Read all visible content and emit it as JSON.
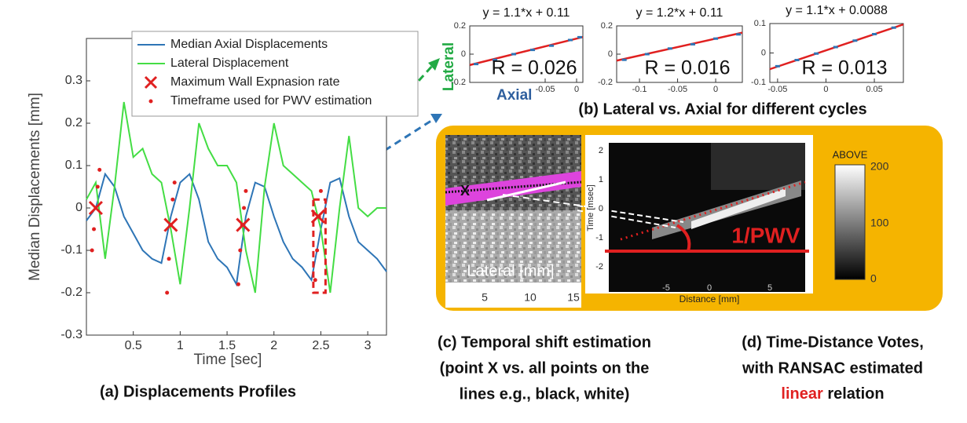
{
  "chart_data": [
    {
      "type": "line",
      "ylabel": "Median Displacements [mm]",
      "xlabel": "Time [sec]",
      "xlim": [
        0,
        3.2
      ],
      "ylim": [
        -0.3,
        0.4
      ],
      "xticks": [
        0.5,
        1,
        1.5,
        2,
        2.5,
        3
      ],
      "yticks": [
        -0.3,
        -0.2,
        -0.1,
        0,
        0.1,
        0.2,
        0.3
      ],
      "x": [
        0,
        0.1,
        0.2,
        0.3,
        0.4,
        0.5,
        0.6,
        0.7,
        0.8,
        0.9,
        1.0,
        1.1,
        1.2,
        1.3,
        1.4,
        1.5,
        1.6,
        1.7,
        1.8,
        1.9,
        2.0,
        2.1,
        2.2,
        2.3,
        2.4,
        2.5,
        2.6,
        2.7,
        2.8,
        2.9,
        3.0,
        3.1,
        3.2
      ],
      "series": [
        {
          "name": "Median Axial Displacements",
          "color": "#2e75b6",
          "values": [
            -0.03,
            0.0,
            0.08,
            0.05,
            -0.02,
            -0.06,
            -0.1,
            -0.12,
            -0.13,
            -0.02,
            0.06,
            0.08,
            0.02,
            -0.08,
            -0.12,
            -0.14,
            -0.18,
            -0.02,
            0.06,
            0.05,
            -0.02,
            -0.08,
            -0.12,
            -0.14,
            -0.17,
            -0.05,
            0.06,
            0.07,
            -0.02,
            -0.08,
            -0.1,
            -0.12,
            -0.15
          ]
        },
        {
          "name": "Lateral Displacement",
          "color": "#44dd44",
          "values": [
            0.02,
            0.06,
            -0.12,
            0.05,
            0.25,
            0.12,
            0.14,
            0.08,
            0.06,
            -0.05,
            -0.18,
            0.0,
            0.2,
            0.14,
            0.1,
            0.1,
            0.06,
            -0.1,
            -0.2,
            0.05,
            0.2,
            0.1,
            0.08,
            0.06,
            0.04,
            -0.05,
            -0.2,
            0.0,
            0.17,
            0.0,
            -0.02,
            0.0,
            0.0
          ]
        }
      ],
      "markers": {
        "name": "Maximum Wall Expnasion rate",
        "color": "#e02020",
        "x": [
          0.1,
          0.9,
          1.67,
          2.47
        ],
        "values": [
          0.0,
          -0.04,
          -0.04,
          -0.02
        ]
      },
      "timeframe": {
        "name": "Timeframe used for PWV estimation",
        "color": "#e02020",
        "x": [
          0.06,
          0.08,
          0.1,
          0.12,
          0.14,
          0.86,
          0.88,
          0.9,
          0.92,
          0.94,
          1.62,
          1.64,
          1.66,
          1.68,
          1.7,
          2.44,
          2.46,
          2.48,
          2.5
        ],
        "values": [
          -0.1,
          -0.05,
          0.0,
          0.05,
          0.09,
          -0.2,
          -0.12,
          -0.04,
          0.02,
          0.06,
          -0.18,
          -0.1,
          -0.04,
          0.0,
          0.04,
          -0.17,
          -0.1,
          -0.02,
          0.04
        ]
      },
      "caption": "(a) Displacements Profiles"
    },
    {
      "type": "scatter",
      "title": "y = 1.1*x + 0.11",
      "annotation": "R = 0.026",
      "xlim": [
        -0.17,
        0.01
      ],
      "ylim": [
        -0.2,
        0.2
      ],
      "xticks": [
        -0.05,
        0
      ],
      "yticks": [
        -0.2,
        0,
        0.2
      ],
      "points": {
        "color": "#2e75b6",
        "x": [
          -0.16,
          -0.13,
          -0.1,
          -0.07,
          -0.04,
          -0.01,
          0.005
        ],
        "values": [
          -0.07,
          -0.04,
          0.0,
          0.03,
          0.06,
          0.1,
          0.12
        ]
      },
      "fit": {
        "color": "#e02020",
        "x": [
          -0.17,
          0.01
        ],
        "values": [
          -0.077,
          0.121
        ]
      }
    },
    {
      "type": "scatter",
      "title": "y = 1.2*x + 0.11",
      "annotation": "R = 0.016",
      "xlim": [
        -0.13,
        0.035
      ],
      "ylim": [
        -0.2,
        0.2
      ],
      "xticks": [
        -0.1,
        -0.05,
        0
      ],
      "yticks": [
        -0.2,
        0,
        0.2
      ],
      "points": {
        "color": "#2e75b6",
        "x": [
          -0.12,
          -0.09,
          -0.06,
          -0.03,
          0.0,
          0.03
        ],
        "values": [
          -0.04,
          0.0,
          0.04,
          0.07,
          0.11,
          0.14
        ]
      },
      "fit": {
        "color": "#e02020",
        "x": [
          -0.13,
          0.035
        ],
        "values": [
          -0.046,
          0.152
        ]
      }
    },
    {
      "type": "scatter",
      "title": "y = 1.1*x + 0.0088",
      "annotation": "R = 0.013",
      "xlim": [
        -0.058,
        0.08
      ],
      "ylim": [
        -0.1,
        0.1
      ],
      "xticks": [
        -0.05,
        0,
        0.05
      ],
      "yticks": [
        -0.1,
        0,
        0.1
      ],
      "points": {
        "color": "#2e75b6",
        "x": [
          -0.05,
          -0.03,
          -0.01,
          0.01,
          0.03,
          0.05,
          0.07
        ],
        "values": [
          -0.045,
          -0.024,
          -0.002,
          0.02,
          0.042,
          0.064,
          0.086
        ]
      },
      "fit": {
        "color": "#e02020",
        "x": [
          -0.058,
          0.08
        ],
        "values": [
          -0.055,
          0.097
        ]
      }
    }
  ],
  "panel_b": {
    "lateral": "Lateral",
    "axial": "Axial",
    "caption": "(b) Lateral vs. Axial for different cycles"
  },
  "panel_c": {
    "point": "X",
    "axis_label": "Lateral [mm]",
    "ticks": [
      "5",
      "10",
      "15"
    ],
    "caption": [
      "(c) Temporal shift estimation",
      "(point X vs. all  points on the",
      "lines e.g., black, white)"
    ]
  },
  "panel_d": {
    "ylabel": "Time [msec]",
    "yticks": [
      "2",
      "1",
      "0",
      "-1",
      "-2"
    ],
    "xlabel": "Distance [mm]",
    "xticks": [
      "-5",
      "0",
      "5"
    ],
    "annotation": "1/PWV",
    "colorbar": {
      "title": "ABOVE",
      "ticks": [
        "200",
        "100",
        "0"
      ]
    },
    "caption": [
      "(d) Time-Distance Votes,",
      "with RANSAC estimated",
      "linear",
      " relation"
    ]
  }
}
